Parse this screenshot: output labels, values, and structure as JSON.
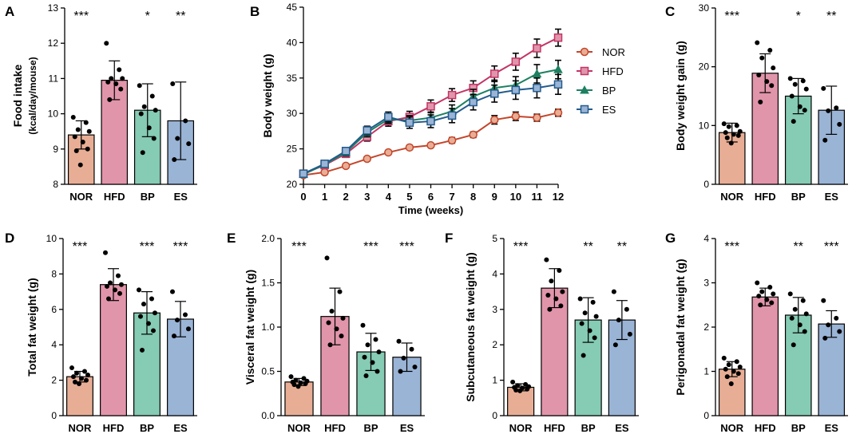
{
  "figure": {
    "width": 1072,
    "height": 544
  },
  "colors": {
    "NOR": "#e8ae95",
    "HFD": "#e195ab",
    "BP": "#86cbb4",
    "ES": "#9ab4d6",
    "line_NOR": "#c4452a",
    "line_HFD": "#c23566",
    "line_BP": "#1d8061",
    "line_ES": "#235b8c"
  },
  "chart_data": [
    {
      "id": "A",
      "type": "bar",
      "letter": "A",
      "title": "",
      "ylabel": "Food intake",
      "ylabel2": "(kcal/day/mouse)",
      "xlabel": "",
      "ylim": [
        8,
        13
      ],
      "yticks": [
        8,
        9,
        10,
        11,
        12,
        13
      ],
      "ytick_labels": [
        "8",
        "9",
        "10",
        "11",
        "12",
        "13"
      ],
      "categories": [
        "NOR",
        "HFD",
        "BP",
        "ES"
      ],
      "values": [
        9.4,
        10.95,
        10.1,
        9.8
      ],
      "errors": [
        0.4,
        0.55,
        0.75,
        1.1
      ],
      "significance": [
        "***",
        "",
        "*",
        "**"
      ],
      "points": [
        [
          9.9,
          9.75,
          9.55,
          9.5,
          9.35,
          9.2,
          9.0,
          8.95,
          8.55
        ],
        [
          12.0,
          11.25,
          11.0,
          11.0,
          10.9,
          10.85,
          10.7,
          10.4
        ],
        [
          10.8,
          10.5,
          10.2,
          10.1,
          10.0,
          9.6,
          9.3,
          8.9
        ],
        [
          10.85,
          9.8,
          9.3,
          9.15,
          8.7
        ]
      ]
    },
    {
      "id": "B",
      "type": "line",
      "letter": "B",
      "title": "",
      "ylabel": "Body weight (g)",
      "xlabel": "Time (weeks)",
      "xlim": [
        0,
        12
      ],
      "ylim": [
        20,
        45
      ],
      "xticks": [
        0,
        1,
        2,
        3,
        4,
        5,
        6,
        7,
        8,
        9,
        10,
        11,
        12
      ],
      "xtick_labels": [
        "0",
        "1",
        "2",
        "3",
        "4",
        "5",
        "6",
        "7",
        "8",
        "9",
        "10",
        "11",
        "12"
      ],
      "yticks": [
        20,
        25,
        30,
        35,
        40,
        45
      ],
      "ytick_labels": [
        "20",
        "25",
        "30",
        "35",
        "40",
        "45"
      ],
      "x": [
        0,
        1,
        2,
        3,
        4,
        5,
        6,
        7,
        8,
        9,
        10,
        11,
        12
      ],
      "legend_position": "right",
      "series": [
        {
          "name": "NOR",
          "marker": "circle",
          "values": [
            21.3,
            21.7,
            22.6,
            23.6,
            24.5,
            25.2,
            25.5,
            26.2,
            27.0,
            29.1,
            29.6,
            29.4,
            30.1
          ],
          "errors": [
            0.3,
            0.3,
            0.3,
            0.3,
            0.3,
            0.3,
            0.3,
            0.4,
            0.4,
            0.6,
            0.6,
            0.5,
            0.5
          ]
        },
        {
          "name": "HFD",
          "marker": "square",
          "values": [
            21.5,
            22.7,
            24.3,
            26.7,
            28.9,
            29.5,
            31.0,
            32.6,
            33.6,
            35.6,
            37.3,
            39.2,
            40.7
          ],
          "errors": [
            0.3,
            0.4,
            0.5,
            0.6,
            0.7,
            0.8,
            0.9,
            0.9,
            1.0,
            1.1,
            1.2,
            1.3,
            1.2
          ]
        },
        {
          "name": "BP",
          "marker": "triangle",
          "values": [
            21.4,
            22.8,
            24.5,
            27.3,
            29.2,
            29.0,
            29.4,
            30.3,
            32.4,
            33.6,
            34.0,
            35.6,
            36.2
          ],
          "errors": [
            0.3,
            0.4,
            0.5,
            0.6,
            0.6,
            0.7,
            0.8,
            0.9,
            1.0,
            1.1,
            1.2,
            1.3,
            1.3
          ]
        },
        {
          "name": "ES",
          "marker": "square",
          "values": [
            21.5,
            22.9,
            24.7,
            27.6,
            29.5,
            28.7,
            28.9,
            29.7,
            31.6,
            32.8,
            33.3,
            33.6,
            34.1
          ],
          "errors": [
            0.3,
            0.4,
            0.5,
            0.6,
            0.7,
            0.8,
            0.9,
            1.0,
            1.1,
            1.2,
            1.3,
            1.4,
            1.4
          ]
        }
      ]
    },
    {
      "id": "C",
      "type": "bar",
      "letter": "C",
      "title": "",
      "ylabel": "Body weight gain (g)",
      "ylabel2": "",
      "xlabel": "",
      "ylim": [
        0,
        30
      ],
      "yticks": [
        0,
        10,
        20,
        30
      ],
      "ytick_labels": [
        "0",
        "10",
        "20",
        "30"
      ],
      "categories": [
        "NOR",
        "HFD",
        "BP",
        "ES"
      ],
      "values": [
        8.8,
        18.9,
        15.0,
        12.6
      ],
      "errors": [
        1.6,
        3.3,
        3.0,
        4.1
      ],
      "significance": [
        "***",
        "",
        "*",
        "**"
      ],
      "points": [
        [
          10.3,
          10.0,
          9.8,
          9.0,
          8.8,
          8.5,
          8.3,
          7.9,
          7.0
        ],
        [
          24.1,
          22.8,
          21.5,
          19.8,
          18.6,
          17.5,
          16.8,
          14.0
        ],
        [
          18.0,
          17.6,
          17.0,
          16.2,
          15.0,
          13.2,
          12.6,
          10.7
        ],
        [
          16.3,
          13.0,
          12.5,
          10.2,
          7.5
        ]
      ]
    },
    {
      "id": "D",
      "type": "bar",
      "letter": "D",
      "title": "",
      "ylabel": "Total fat weight (g)",
      "ylabel2": "",
      "xlabel": "",
      "ylim": [
        0,
        10
      ],
      "yticks": [
        0,
        2,
        4,
        6,
        8,
        10
      ],
      "ytick_labels": [
        "0",
        "2",
        "4",
        "6",
        "8",
        "10"
      ],
      "categories": [
        "NOR",
        "HFD",
        "BP",
        "ES"
      ],
      "values": [
        2.2,
        7.4,
        5.8,
        5.45
      ],
      "errors": [
        0.3,
        0.9,
        1.2,
        1.0
      ],
      "significance": [
        "***",
        "",
        "***",
        "***"
      ],
      "points": [
        [
          2.7,
          2.5,
          2.4,
          2.3,
          2.2,
          2.1,
          2.0,
          1.9,
          1.8
        ],
        [
          9.2,
          7.9,
          7.5,
          7.4,
          7.3,
          7.1,
          6.9,
          6.6
        ],
        [
          7.1,
          6.6,
          6.3,
          5.8,
          5.6,
          5.2,
          4.8,
          3.7
        ],
        [
          7.0,
          5.7,
          5.4,
          4.9,
          4.5
        ]
      ]
    },
    {
      "id": "E",
      "type": "bar",
      "letter": "E",
      "title": "",
      "ylabel": "Visceral fat weight (g)",
      "ylabel2": "",
      "xlabel": "",
      "ylim": [
        0,
        2.0
      ],
      "yticks": [
        0,
        0.5,
        1.0,
        1.5,
        2.0
      ],
      "ytick_labels": [
        "0.0",
        "0.5",
        "1.0",
        "1.5",
        "2.0"
      ],
      "categories": [
        "NOR",
        "HFD",
        "BP",
        "ES"
      ],
      "values": [
        0.38,
        1.12,
        0.72,
        0.66
      ],
      "errors": [
        0.04,
        0.32,
        0.21,
        0.16
      ],
      "significance": [
        "***",
        "",
        "***",
        "***"
      ],
      "points": [
        [
          0.44,
          0.42,
          0.4,
          0.39,
          0.38,
          0.37,
          0.36,
          0.35,
          0.33
        ],
        [
          1.78,
          1.4,
          1.18,
          1.1,
          1.05,
          0.98,
          0.9,
          0.8
        ],
        [
          1.02,
          0.86,
          0.8,
          0.72,
          0.66,
          0.6,
          0.5,
          0.45
        ],
        [
          0.84,
          0.75,
          0.65,
          0.55,
          0.5
        ]
      ]
    },
    {
      "id": "F",
      "type": "bar",
      "letter": "F",
      "title": "",
      "ylabel": "Subcutaneous fat weight (g)",
      "ylabel2": "",
      "xlabel": "",
      "ylim": [
        0,
        5
      ],
      "yticks": [
        0,
        1,
        2,
        3,
        4,
        5
      ],
      "ytick_labels": [
        "0",
        "1",
        "2",
        "3",
        "4",
        "5"
      ],
      "categories": [
        "NOR",
        "HFD",
        "BP",
        "ES"
      ],
      "values": [
        0.8,
        3.6,
        2.7,
        2.7
      ],
      "errors": [
        0.1,
        0.55,
        0.63,
        0.55
      ],
      "significance": [
        "***",
        "",
        "**",
        "**"
      ],
      "points": [
        [
          0.95,
          0.88,
          0.85,
          0.82,
          0.8,
          0.78,
          0.75,
          0.72,
          0.7
        ],
        [
          4.4,
          4.1,
          3.8,
          3.5,
          3.4,
          3.3,
          3.1,
          3.0
        ],
        [
          3.3,
          3.2,
          2.9,
          2.8,
          2.6,
          2.4,
          2.2,
          1.7
        ],
        [
          3.5,
          3.0,
          2.7,
          2.3,
          2.0
        ]
      ]
    },
    {
      "id": "G",
      "type": "bar",
      "letter": "G",
      "title": "",
      "ylabel": "Perigonadal fat weight (g)",
      "ylabel2": "",
      "xlabel": "",
      "ylim": [
        0,
        4
      ],
      "yticks": [
        0,
        1,
        2,
        3,
        4
      ],
      "ytick_labels": [
        "0",
        "1",
        "2",
        "3",
        "4"
      ],
      "categories": [
        "NOR",
        "HFD",
        "BP",
        "ES"
      ],
      "values": [
        1.05,
        2.68,
        2.27,
        2.07
      ],
      "errors": [
        0.17,
        0.2,
        0.4,
        0.3
      ],
      "significance": [
        "***",
        "",
        "**",
        "***"
      ],
      "points": [
        [
          1.3,
          1.22,
          1.15,
          1.1,
          1.05,
          1.0,
          0.95,
          0.88,
          0.72
        ],
        [
          3.0,
          2.9,
          2.8,
          2.75,
          2.7,
          2.62,
          2.55,
          2.5
        ],
        [
          2.75,
          2.6,
          2.4,
          2.3,
          2.2,
          2.05,
          1.9,
          1.6
        ],
        [
          2.6,
          2.2,
          2.05,
          1.9,
          1.75
        ]
      ]
    }
  ]
}
